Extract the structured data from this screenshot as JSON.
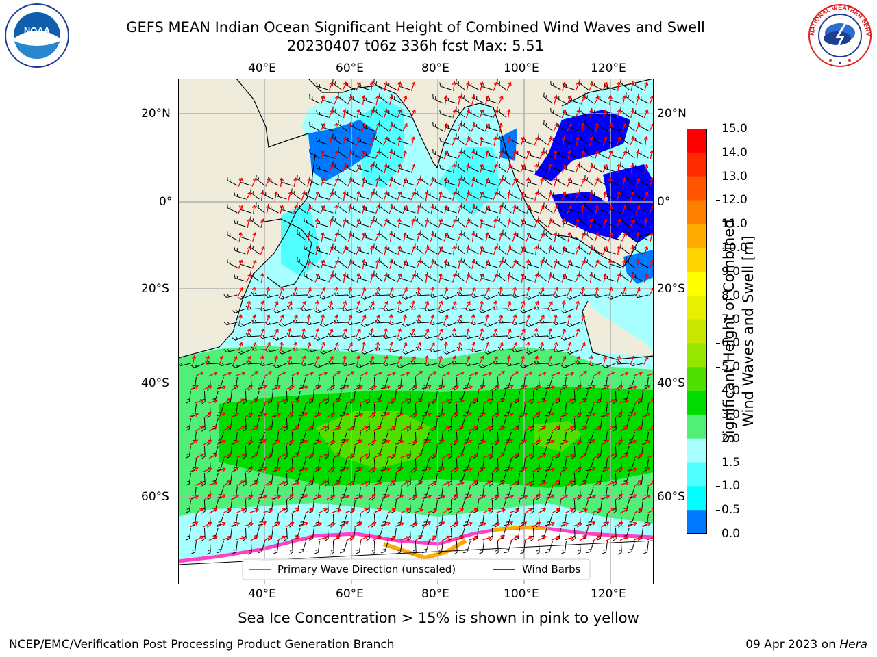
{
  "header": {
    "title_line1": "GEFS MEAN Indian Ocean Significant Height of Combined Wind Waves and Swell",
    "title_line2": "20230407 t06z 336h fcst   Max: 5.51"
  },
  "logos": {
    "left": {
      "text": "NOAA",
      "icon": "noaa-logo"
    },
    "right": {
      "text": "NATIONAL WEATHER SERVICE",
      "icon": "nws-logo"
    }
  },
  "map": {
    "lon_labels": [
      "40°E",
      "60°E",
      "80°E",
      "100°E",
      "120°E"
    ],
    "lat_labels": [
      "20°N",
      "0°",
      "20°S",
      "40°S",
      "60°S"
    ],
    "colors": {
      "land": "#efecdc",
      "grid": "#b0b0b0",
      "wave_arrow": "#ff0000",
      "wind_barb": "#000000"
    },
    "legend": {
      "wave_label": "Primary Wave Direction (unscaled)",
      "wind_label": "Wind Barbs"
    }
  },
  "colorbar": {
    "title_line1": "Significant Height of Combined",
    "title_line2": "Wind Waves and Swell [m]",
    "levels": [
      "15.0",
      "14.0",
      "13.0",
      "12.0",
      "11.0",
      "10.0",
      "9.0",
      "8.0",
      "7.0",
      "6.0",
      "5.0",
      "4.0",
      "3.0",
      "2.0",
      "1.5",
      "1.0",
      "0.5",
      "0.0"
    ],
    "colors": [
      "#ff0000",
      "#ff2a00",
      "#ff5500",
      "#ff7f00",
      "#ffaa00",
      "#ffd400",
      "#ffff00",
      "#e6f000",
      "#c8e600",
      "#96e600",
      "#50e000",
      "#00dc00",
      "#50f078",
      "#a8ffff",
      "#50ffff",
      "#00ffff",
      "#0078ff",
      "#0000ff"
    ]
  },
  "caption": "Sea Ice Concentration > 15% is shown in pink to yellow",
  "footer": {
    "left": "NCEP/EMC/Verification Post Processing Product Generation Branch",
    "right_date": "09 Apr 2023 on ",
    "right_machine": "Hera"
  }
}
